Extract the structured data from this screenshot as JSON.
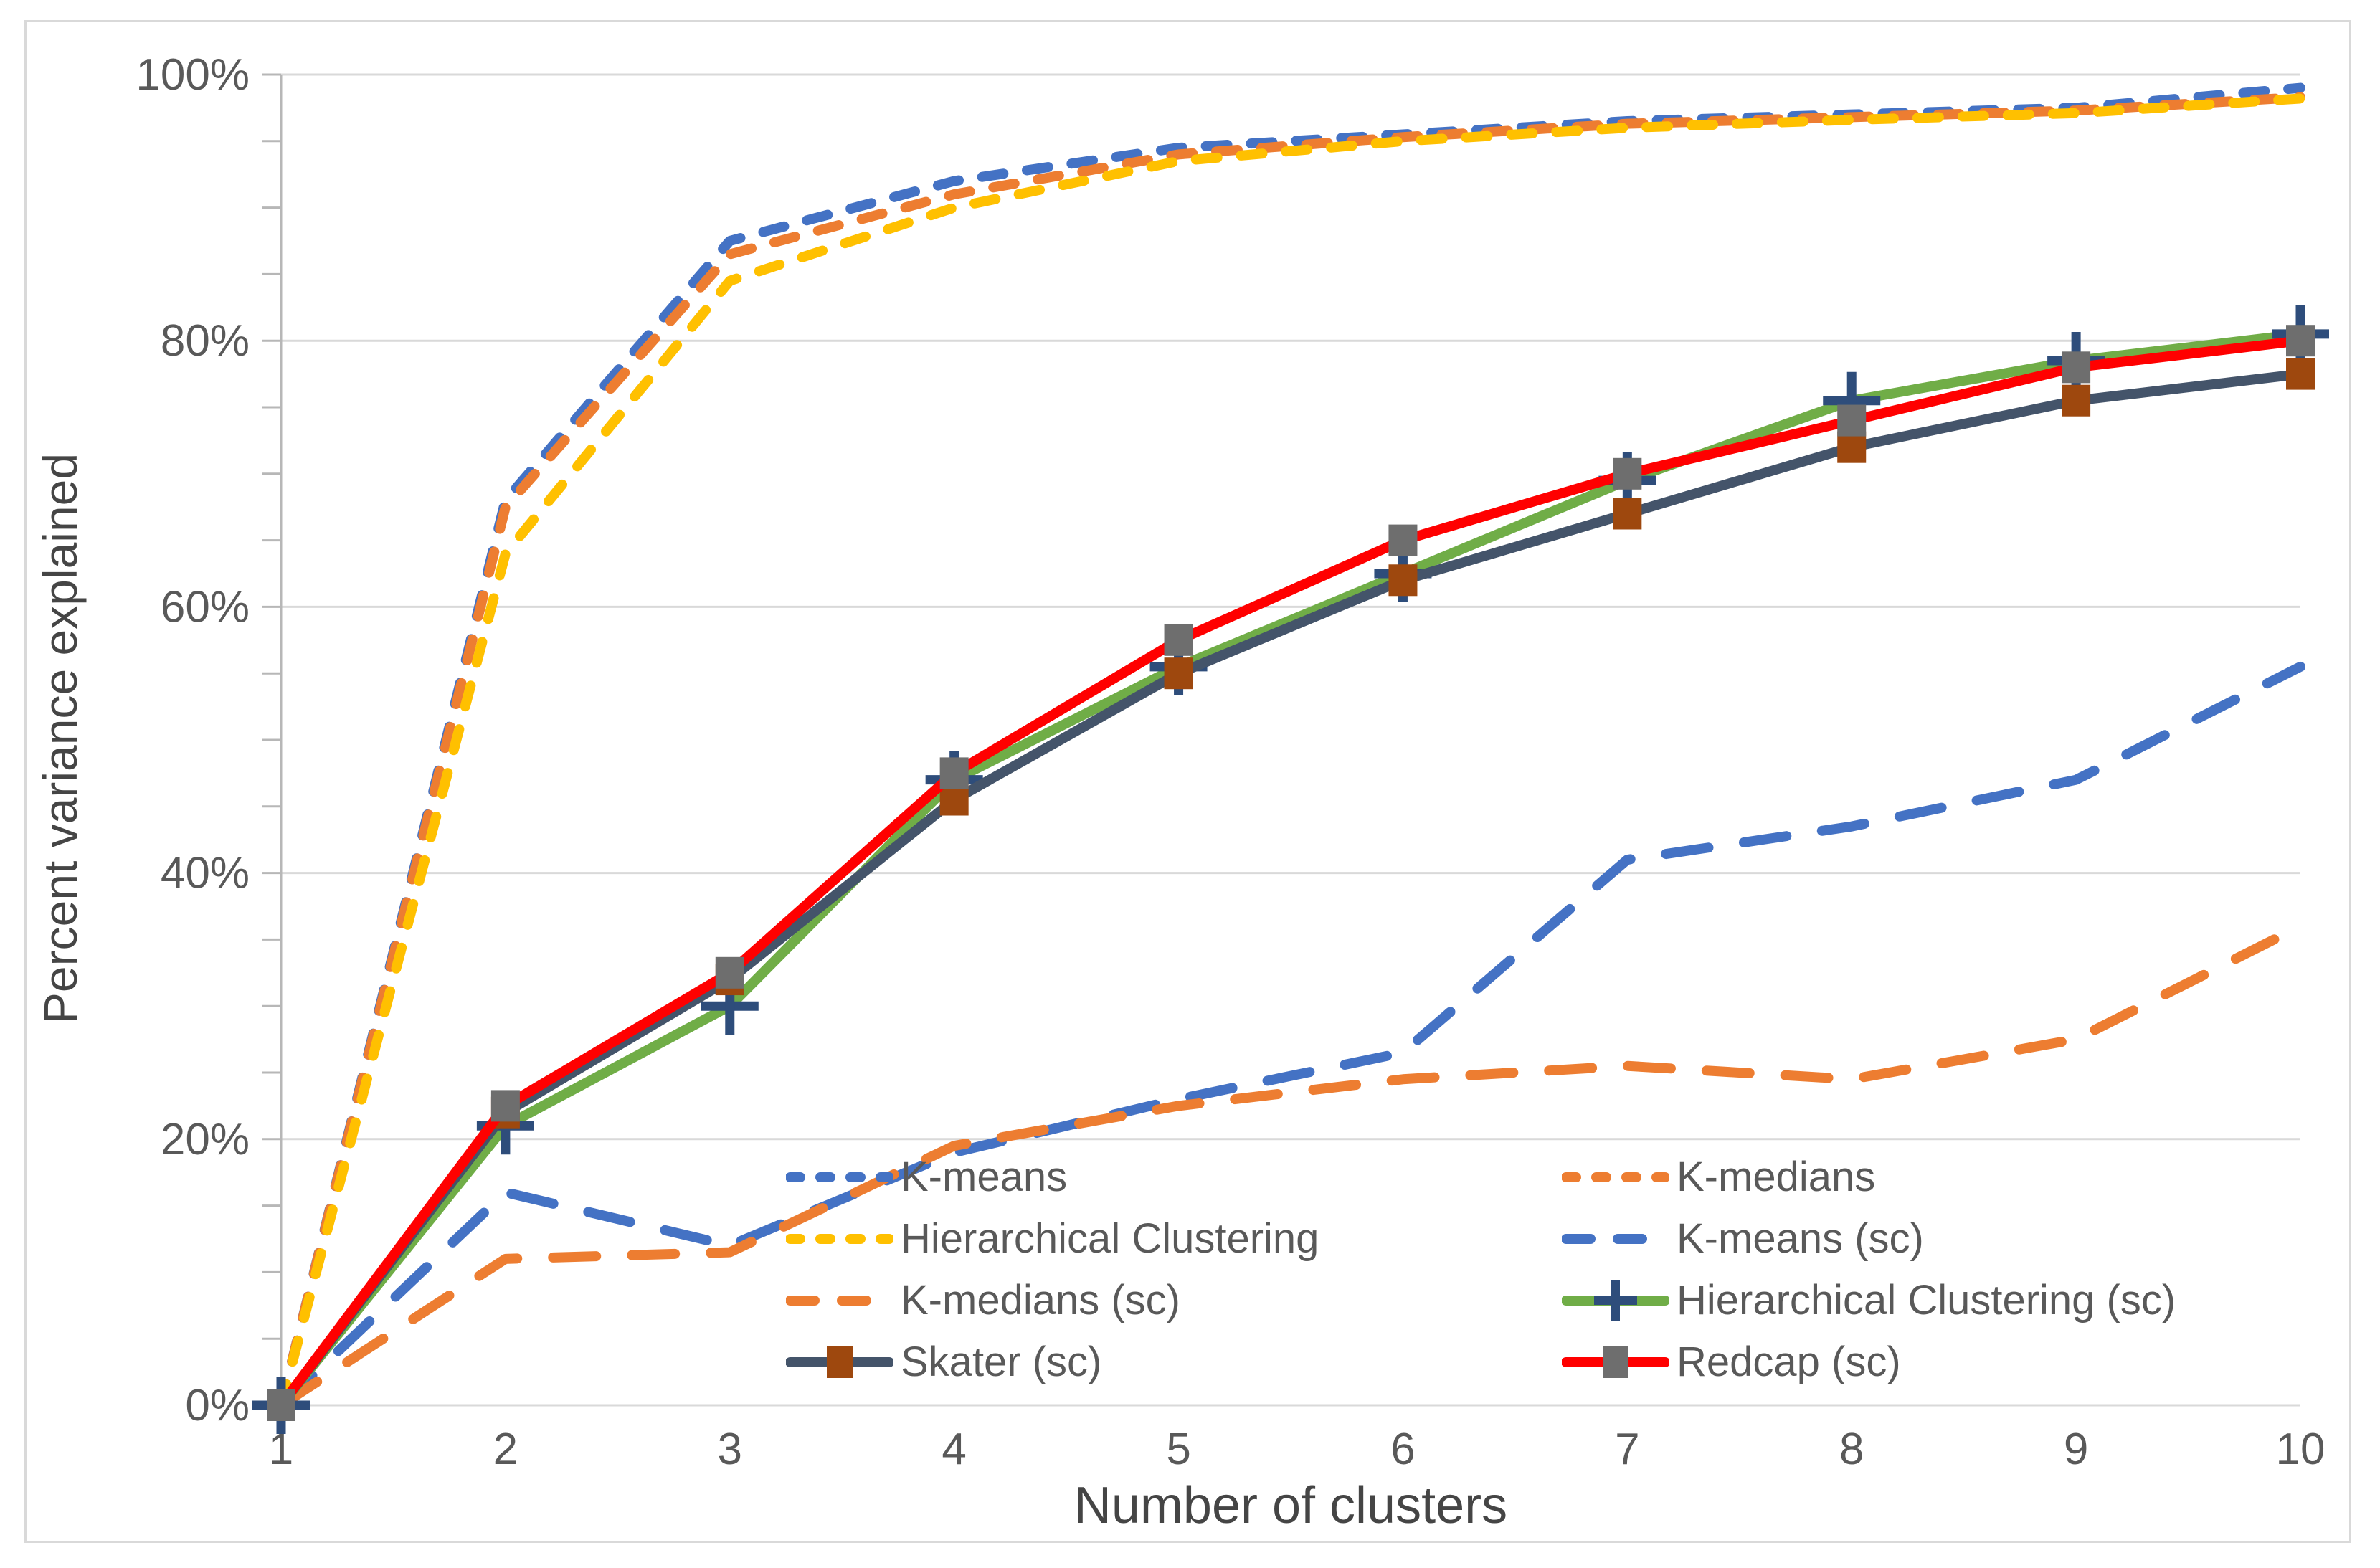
{
  "chart_data": {
    "type": "line",
    "title": "",
    "xlabel": "Number of clusters",
    "ylabel": "Percent variance explained",
    "x": [
      1,
      2,
      3,
      4,
      5,
      6,
      7,
      8,
      9,
      10
    ],
    "ylim": [
      0,
      100
    ],
    "yticks": [
      0,
      20,
      40,
      60,
      80,
      100
    ],
    "ytick_labels": [
      "0%",
      "20%",
      "40%",
      "60%",
      "80%",
      "100%"
    ],
    "y_minor_tick_step": 5,
    "grid": "horizontal-major-gridlines",
    "legend_position": "inside-bottom-two-columns",
    "axis_text_color": "#595959",
    "axis_title_color": "#454545",
    "gridline_color": "#D9D9D9",
    "axis_line_color": "#B7B7B7",
    "series": [
      {
        "name": "K-means",
        "color": "#4472C4",
        "line_style": "fine-dash",
        "marker": "none",
        "values": [
          0,
          68,
          87.5,
          92,
          94.5,
          95.5,
          96.5,
          97,
          97.5,
          99
        ]
      },
      {
        "name": "K-medians",
        "color": "#ED7D31",
        "line_style": "fine-dash",
        "marker": "none",
        "values": [
          0,
          67.5,
          86.5,
          91,
          94,
          95.3,
          96.3,
          96.8,
          97.3,
          98.3
        ]
      },
      {
        "name": "Hierarchical Clustering",
        "color": "#FFC000",
        "line_style": "fine-dash",
        "marker": "none",
        "values": [
          0,
          64,
          84.5,
          90,
          93.5,
          95,
          96,
          96.6,
          97.1,
          98.2
        ]
      },
      {
        "name": "K-means (sc)",
        "color": "#4472C4",
        "line_style": "long-dash",
        "marker": "none",
        "values": [
          0,
          16,
          12,
          19,
          23,
          26.5,
          41,
          43.5,
          47,
          55.5
        ]
      },
      {
        "name": "K-medians (sc)",
        "color": "#ED7D31",
        "line_style": "long-dash",
        "marker": "none",
        "values": [
          0,
          11,
          11.5,
          19.5,
          22.5,
          24.5,
          25.5,
          24.5,
          27.5,
          36
        ]
      },
      {
        "name": "Hierarchical Clustering (sc)",
        "color": "#70AD47",
        "line_style": "solid",
        "marker": "plus",
        "marker_color": "#2E4D7B",
        "values": [
          0,
          21,
          30,
          47,
          55.5,
          62.5,
          69.5,
          75.5,
          78.5,
          80.5
        ]
      },
      {
        "name": "Skater (sc)",
        "color": "#44546A",
        "line_style": "solid",
        "marker": "square",
        "marker_color": "#9E480E",
        "values": [
          0,
          22,
          32,
          45.5,
          55,
          62,
          67,
          72,
          75.5,
          77.5
        ]
      },
      {
        "name": "Redcap (sc)",
        "color": "#FF0000",
        "line_style": "solid",
        "marker": "square",
        "marker_color": "#6E6E6E",
        "values": [
          0,
          22.5,
          32.5,
          47.5,
          57.5,
          65,
          70,
          74,
          78,
          80
        ]
      }
    ],
    "legend_columns": {
      "left": [
        0,
        2,
        4,
        6
      ],
      "right": [
        1,
        3,
        5,
        7
      ]
    }
  }
}
